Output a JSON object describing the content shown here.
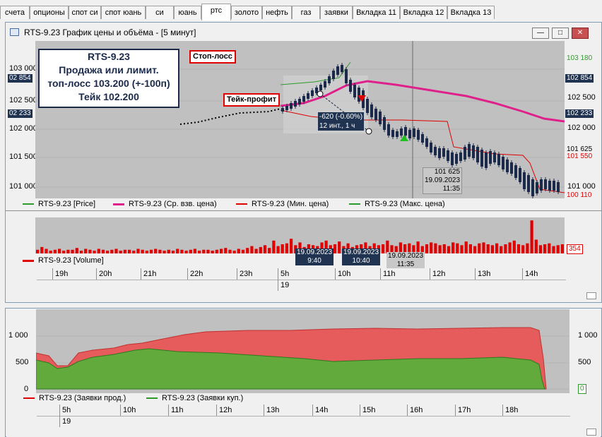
{
  "tabs": [
    "счета",
    "опционы",
    "спот си",
    "спот юань",
    "си",
    "юань",
    "ртс",
    "золото",
    "нефть",
    "газ",
    "заявки",
    "Вкладка 11",
    "Вкладка 12",
    "Вкладка 13"
  ],
  "active_tab": "ртс",
  "window": {
    "title": "RTS-9.23 График цены и объёма  - [5 минут]",
    "buttons": [
      "minimize",
      "maximize",
      "close"
    ]
  },
  "price_chart": {
    "y_ticks": [
      "103 000",
      "102 500",
      "102 000",
      "101 500",
      "101 000"
    ],
    "left_tags": [
      "02 854",
      "02 233"
    ],
    "right_ticks": [
      "102 500",
      "102 000",
      "101 000"
    ],
    "right_tags": [
      {
        "text": "103 180",
        "color": "#2e9a2e",
        "bg": "#f0f0f0"
      },
      {
        "text": "102 854",
        "color": "#ffffff",
        "bg": "#203452"
      },
      {
        "text": "102 233",
        "color": "#ffffff",
        "bg": "#203452"
      },
      {
        "text": "101 625",
        "color": "#000000",
        "bg": "#f0f0f0"
      },
      {
        "text": "101 550",
        "color": "#e00000",
        "bg": "#f0f0f0"
      },
      {
        "text": "100 110",
        "color": "#e00000",
        "bg": "#f0f0f0"
      }
    ],
    "hint_lines": [
      "RTS-9.23",
      "Продажа или лимит.",
      "топ-лосс 103.200 (+-100п)",
      "Тейк 102.200"
    ],
    "stop_loss_label": "Стоп-лосс",
    "take_profit_label": "Тейк-профит",
    "measure_lines": [
      "-620 (-0.60%)",
      "12 инт., 1 ч"
    ],
    "cursor_lines": [
      "101 625",
      "19.09.2023",
      "11:35"
    ],
    "legend": [
      {
        "label": "RTS-9.23 [Price]",
        "color": "#2e9a2e"
      },
      {
        "label": "RTS-9.23 (Ср. взв. цена)",
        "color": "#e0208a"
      },
      {
        "label": "RTS-9.23 (Мин. цена)",
        "color": "#e00000"
      },
      {
        "label": "RTS-9.23 (Макс. цена)",
        "color": "#2e9a2e"
      }
    ]
  },
  "volume_chart": {
    "legend": {
      "label": "RTS-9.23 [Volume]",
      "color": "#e00000"
    },
    "right_tag": "354",
    "time_tags": [
      {
        "date": "19.09.2023",
        "time": "9:40",
        "style": "dark"
      },
      {
        "date": "19.09.2023",
        "time": "10:40",
        "style": "dark"
      },
      {
        "date": "19.09.2023",
        "time": "11:35",
        "style": "plain"
      }
    ]
  },
  "time_axis_top": {
    "hours": [
      "19h",
      "20h",
      "21h",
      "22h",
      "23h",
      "5h",
      "10h",
      "11h",
      "12h",
      "13h",
      "14h"
    ],
    "day": "19"
  },
  "orders_chart": {
    "y_ticks": [
      "1 000",
      "500",
      "0"
    ],
    "right_ticks": [
      "1 000",
      "500"
    ],
    "right_tag": "0",
    "legend": [
      {
        "label": "RTS-9.23 (Заявки прод.)",
        "color": "#e00000"
      },
      {
        "label": "RTS-9.23 (Заявки куп.)",
        "color": "#2e9a2e"
      }
    ],
    "hours": [
      "5h",
      "10h",
      "11h",
      "12h",
      "13h",
      "14h",
      "15h",
      "16h",
      "17h",
      "18h"
    ],
    "day": "19"
  },
  "colors": {
    "chart_bg": "#c0c0c0",
    "vwap": "#e0208a",
    "min_price": "#e00000",
    "max_price": "#2e9a2e",
    "candle": "#1b2a4a",
    "accent_dark": "#203452"
  }
}
